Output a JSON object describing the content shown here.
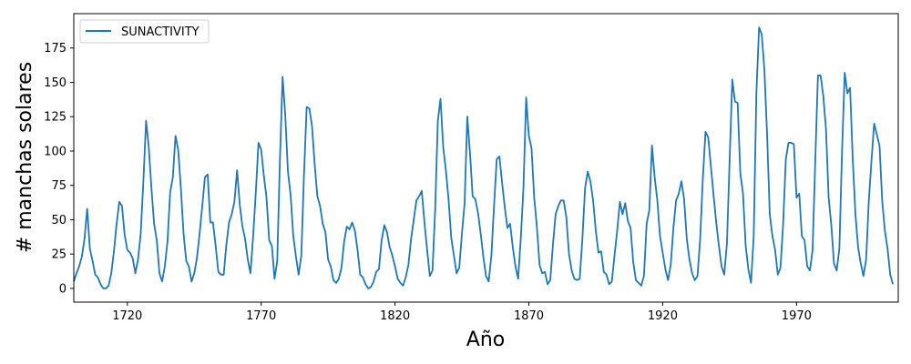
{
  "chart_data": {
    "type": "line",
    "xlabel": "Año",
    "ylabel": "# manchas solares",
    "xlim": [
      1700,
      2008
    ],
    "ylim": [
      -10,
      200
    ],
    "xticks": [
      1720,
      1770,
      1820,
      1870,
      1920,
      1970
    ],
    "yticks": [
      0,
      25,
      50,
      75,
      100,
      125,
      150,
      175
    ],
    "grid": false,
    "legend_position": "top-left",
    "series": [
      {
        "name": "SUNACTIVITY",
        "color": "#1f77b4",
        "x_start": 1700,
        "x_step": 1,
        "values": [
          5,
          11,
          16,
          23,
          36,
          58,
          29,
          20,
          10,
          8,
          3,
          0,
          0,
          2,
          11,
          27,
          47,
          63,
          60,
          39,
          28,
          26,
          22,
          11,
          21,
          40,
          78,
          122,
          103,
          73,
          47,
          35,
          11,
          5,
          16,
          34,
          70,
          81,
          111,
          101,
          73,
          40,
          20,
          16,
          5,
          11,
          22,
          40,
          60,
          81,
          83,
          48,
          48,
          31,
          12,
          10,
          10,
          32,
          48,
          54,
          63,
          86,
          61,
          45,
          36,
          21,
          11,
          38,
          70,
          106,
          101,
          82,
          66,
          35,
          31,
          7,
          20,
          93,
          154,
          126,
          85,
          68,
          38,
          23,
          10,
          24,
          83,
          132,
          131,
          118,
          90,
          67,
          60,
          47,
          41,
          21,
          16,
          6,
          4,
          7,
          15,
          34,
          45,
          43,
          48,
          42,
          28,
          10,
          8,
          3,
          0,
          1,
          5,
          12,
          14,
          35,
          46,
          41,
          30,
          24,
          16,
          7,
          4,
          2,
          8,
          17,
          36,
          50,
          64,
          67,
          71,
          48,
          28,
          9,
          13,
          57,
          122,
          138,
          103,
          86,
          65,
          37,
          24,
          11,
          15,
          40,
          62,
          125,
          99,
          67,
          65,
          55,
          40,
          23,
          9,
          5,
          24,
          60,
          94,
          96,
          77,
          59,
          44,
          47,
          30,
          16,
          7,
          37,
          74,
          139,
          111,
          102,
          66,
          45,
          17,
          11,
          12,
          3,
          6,
          32,
          54,
          60,
          64,
          64,
          52,
          25,
          13,
          7,
          6,
          7,
          36,
          73,
          85,
          78,
          64,
          42,
          26,
          27,
          12,
          10,
          3,
          5,
          24,
          42,
          63,
          54,
          62,
          49,
          44,
          19,
          6,
          4,
          2,
          9,
          47,
          57,
          104,
          81,
          64,
          38,
          26,
          14,
          6,
          17,
          44,
          64,
          69,
          78,
          65,
          36,
          21,
          11,
          6,
          9,
          36,
          80,
          114,
          110,
          89,
          68,
          48,
          31,
          16,
          10,
          33,
          93,
          152,
          136,
          135,
          84,
          69,
          31,
          14,
          4,
          38,
          142,
          190,
          185,
          159,
          112,
          54,
          38,
          28,
          10,
          15,
          47,
          94,
          106,
          106,
          105,
          66,
          69,
          38,
          35,
          16,
          13,
          28,
          93,
          155,
          155,
          140,
          116,
          66,
          46,
          18,
          13,
          29,
          100,
          157,
          142,
          146,
          94,
          54,
          30,
          18,
          9,
          21,
          64,
          93,
          120,
          112,
          104,
          64,
          42,
          29,
          10,
          3
        ]
      }
    ]
  }
}
